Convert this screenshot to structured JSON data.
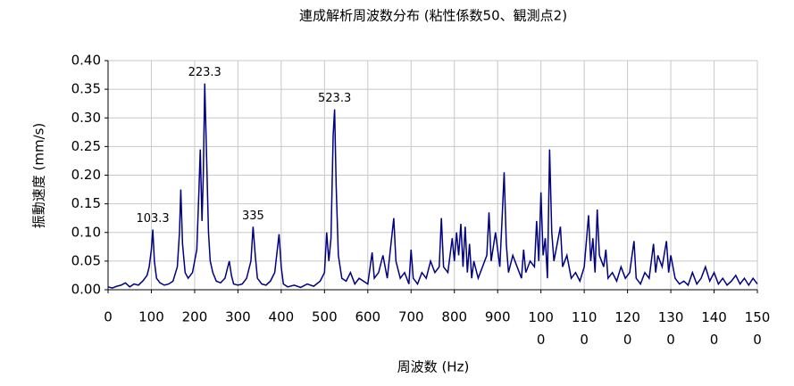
{
  "chart_data": {
    "type": "line",
    "title": "連成解析周波数分布 (粘性係数50、観測点2)",
    "x_label": "周波数 (Hz)",
    "y_label": "振動速度 (mm/s)",
    "color": "#000080",
    "grid": true,
    "xlim": [
      0,
      1500
    ],
    "xticks": [
      0,
      100,
      200,
      300,
      400,
      500,
      600,
      700,
      800,
      900,
      1000,
      1100,
      1200,
      1300,
      1400,
      1500
    ],
    "ylim": [
      0,
      0.4
    ],
    "yticks": [
      {
        "value": 0,
        "label": "0.00"
      },
      {
        "value": 0.05,
        "label": "0.05"
      },
      {
        "value": 0.1,
        "label": "0.10"
      },
      {
        "value": 0.15,
        "label": "0.15"
      },
      {
        "value": 0.2,
        "label": "0.20"
      },
      {
        "value": 0.25,
        "label": "0.25"
      },
      {
        "value": 0.3,
        "label": "0.30"
      },
      {
        "value": 0.35,
        "label": "0.35"
      },
      {
        "value": 0.4,
        "label": "0.40"
      }
    ],
    "x": [
      0,
      10,
      20,
      30,
      40,
      50,
      60,
      70,
      80,
      90,
      95,
      100,
      103.3,
      107,
      112,
      120,
      130,
      140,
      150,
      160,
      165,
      168,
      172,
      178,
      185,
      195,
      205,
      210,
      213,
      217,
      220,
      223.3,
      227,
      232,
      236,
      242,
      250,
      260,
      270,
      280,
      285,
      290,
      300,
      310,
      320,
      330,
      335,
      340,
      345,
      355,
      365,
      375,
      385,
      395,
      400,
      405,
      415,
      430,
      445,
      460,
      475,
      490,
      500,
      505,
      510,
      515,
      520,
      523.3,
      527,
      532,
      540,
      550,
      560,
      570,
      580,
      590,
      600,
      610,
      615,
      625,
      635,
      645,
      655,
      660,
      665,
      675,
      685,
      695,
      700,
      705,
      715,
      725,
      735,
      745,
      755,
      765,
      770,
      775,
      785,
      795,
      800,
      805,
      810,
      815,
      820,
      825,
      830,
      835,
      840,
      845,
      855,
      865,
      875,
      880,
      885,
      895,
      905,
      910,
      915,
      920,
      925,
      935,
      945,
      955,
      960,
      965,
      975,
      985,
      990,
      995,
      1000,
      1005,
      1010,
      1015,
      1020,
      1025,
      1030,
      1040,
      1045,
      1050,
      1060,
      1070,
      1080,
      1090,
      1100,
      1110,
      1115,
      1120,
      1125,
      1130,
      1135,
      1145,
      1150,
      1155,
      1165,
      1175,
      1185,
      1195,
      1205,
      1215,
      1220,
      1230,
      1240,
      1250,
      1260,
      1265,
      1270,
      1280,
      1290,
      1295,
      1300,
      1310,
      1320,
      1330,
      1340,
      1350,
      1360,
      1370,
      1380,
      1390,
      1400,
      1410,
      1420,
      1430,
      1440,
      1450,
      1460,
      1470,
      1480,
      1490,
      1500
    ],
    "values": [
      0.005,
      0.003,
      0.006,
      0.008,
      0.012,
      0.005,
      0.01,
      0.008,
      0.015,
      0.025,
      0.04,
      0.07,
      0.105,
      0.05,
      0.02,
      0.012,
      0.008,
      0.01,
      0.015,
      0.04,
      0.1,
      0.175,
      0.08,
      0.03,
      0.02,
      0.03,
      0.07,
      0.175,
      0.245,
      0.12,
      0.2,
      0.36,
      0.25,
      0.1,
      0.05,
      0.03,
      0.015,
      0.012,
      0.02,
      0.05,
      0.025,
      0.01,
      0.008,
      0.01,
      0.02,
      0.05,
      0.11,
      0.06,
      0.02,
      0.01,
      0.008,
      0.015,
      0.03,
      0.097,
      0.04,
      0.01,
      0.005,
      0.008,
      0.004,
      0.01,
      0.006,
      0.015,
      0.03,
      0.1,
      0.05,
      0.09,
      0.27,
      0.315,
      0.18,
      0.06,
      0.02,
      0.015,
      0.03,
      0.01,
      0.02,
      0.015,
      0.01,
      0.065,
      0.02,
      0.03,
      0.06,
      0.02,
      0.09,
      0.125,
      0.05,
      0.02,
      0.03,
      0.01,
      0.07,
      0.02,
      0.01,
      0.03,
      0.02,
      0.05,
      0.03,
      0.04,
      0.125,
      0.04,
      0.03,
      0.09,
      0.05,
      0.1,
      0.06,
      0.115,
      0.04,
      0.11,
      0.03,
      0.08,
      0.02,
      0.05,
      0.02,
      0.04,
      0.06,
      0.135,
      0.05,
      0.1,
      0.04,
      0.12,
      0.205,
      0.08,
      0.03,
      0.06,
      0.04,
      0.02,
      0.07,
      0.03,
      0.05,
      0.04,
      0.12,
      0.05,
      0.17,
      0.06,
      0.09,
      0.02,
      0.245,
      0.1,
      0.05,
      0.09,
      0.11,
      0.04,
      0.06,
      0.02,
      0.03,
      0.015,
      0.04,
      0.13,
      0.05,
      0.09,
      0.03,
      0.14,
      0.06,
      0.04,
      0.07,
      0.02,
      0.03,
      0.015,
      0.04,
      0.02,
      0.03,
      0.085,
      0.02,
      0.01,
      0.03,
      0.02,
      0.08,
      0.03,
      0.06,
      0.04,
      0.085,
      0.03,
      0.06,
      0.02,
      0.01,
      0.015,
      0.008,
      0.03,
      0.01,
      0.02,
      0.04,
      0.015,
      0.03,
      0.01,
      0.02,
      0.008,
      0.015,
      0.025,
      0.01,
      0.02,
      0.008,
      0.02,
      0.01
    ],
    "annotations": [
      {
        "text": "103.3",
        "x": 103.3
      },
      {
        "text": "223.3",
        "x": 223.3
      },
      {
        "text": "335",
        "x": 335
      },
      {
        "text": "523.3",
        "x": 523.3
      }
    ]
  }
}
